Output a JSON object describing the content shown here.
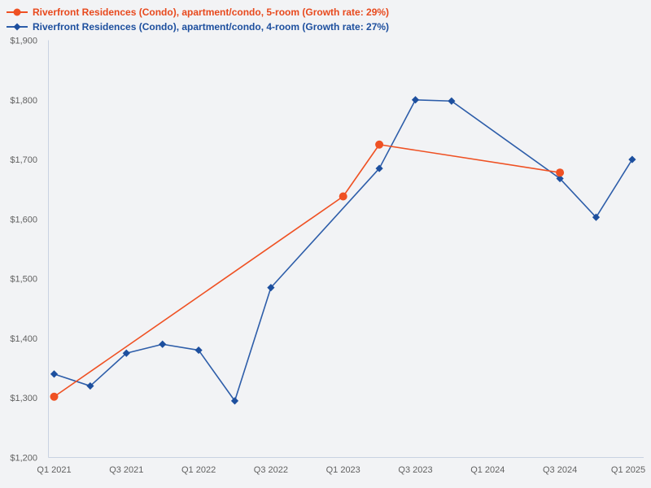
{
  "page": {
    "background_color": "#f2f3f5",
    "axis_color": "#c9d2e1",
    "tick_text_color": "#616161"
  },
  "legend": [
    {
      "label": "Riverfront Residences (Condo), apartment/condo, 5-room (Growth rate: 29%)",
      "marker": "circle",
      "line_color": "#ef5123",
      "marker_color": "#ef5123",
      "text_color": "#e8491d"
    },
    {
      "label": "Riverfront Residences (Condo), apartment/condo, 4-room (Growth rate: 27%)",
      "marker": "diamond",
      "line_color": "#2d5da9",
      "marker_color": "#1d4f9e",
      "text_color": "#1d4f9e"
    }
  ],
  "chart_data": {
    "type": "line",
    "title": "",
    "xlabel": "",
    "ylabel": "",
    "grid": false,
    "legend_position": "top-left",
    "ylim": [
      1200,
      1900
    ],
    "y_ticks": [
      {
        "value": 1900,
        "label": "$1,900"
      },
      {
        "value": 1800,
        "label": "$1,800"
      },
      {
        "value": 1700,
        "label": "$1,700"
      },
      {
        "value": 1600,
        "label": "$1,600"
      },
      {
        "value": 1500,
        "label": "$1,500"
      },
      {
        "value": 1400,
        "label": "$1,400"
      },
      {
        "value": 1300,
        "label": "$1,300"
      },
      {
        "value": 1200,
        "label": "$1,200"
      }
    ],
    "x_categories": [
      "Q1 2021",
      "Q2 2021",
      "Q3 2021",
      "Q4 2021",
      "Q1 2022",
      "Q2 2022",
      "Q3 2022",
      "Q4 2022",
      "Q1 2023",
      "Q2 2023",
      "Q3 2023",
      "Q4 2023",
      "Q1 2024",
      "Q2 2024",
      "Q3 2024",
      "Q4 2024",
      "Q1 2025"
    ],
    "x_tick_labels": [
      "Q1 2021",
      "Q3 2021",
      "Q1 2022",
      "Q3 2022",
      "Q1 2023",
      "Q3 2023",
      "Q1 2024",
      "Q3 2024",
      "Q1 2025"
    ],
    "series": [
      {
        "name": "Riverfront Residences (Condo), apartment/condo, 5-room (Growth rate: 29%)",
        "growth_rate": "29%",
        "marker": "circle",
        "line_color": "#ef5123",
        "marker_color": "#ef5123",
        "points": [
          {
            "x": "Q1 2021",
            "y": 1302
          },
          {
            "x": "Q1 2023",
            "y": 1638
          },
          {
            "x": "Q2 2023",
            "y": 1725
          },
          {
            "x": "Q3 2024",
            "y": 1678
          }
        ]
      },
      {
        "name": "Riverfront Residences (Condo), apartment/condo, 4-room (Growth rate: 27%)",
        "growth_rate": "27%",
        "marker": "diamond",
        "line_color": "#2d5da9",
        "marker_color": "#1d4f9e",
        "points": [
          {
            "x": "Q1 2021",
            "y": 1340
          },
          {
            "x": "Q2 2021",
            "y": 1320
          },
          {
            "x": "Q3 2021",
            "y": 1375
          },
          {
            "x": "Q4 2021",
            "y": 1390
          },
          {
            "x": "Q1 2022",
            "y": 1380
          },
          {
            "x": "Q2 2022",
            "y": 1295
          },
          {
            "x": "Q3 2022",
            "y": 1485
          },
          {
            "x": "Q2 2023",
            "y": 1685
          },
          {
            "x": "Q3 2023",
            "y": 1800
          },
          {
            "x": "Q4 2023",
            "y": 1798
          },
          {
            "x": "Q3 2024",
            "y": 1668
          },
          {
            "x": "Q4 2024",
            "y": 1603
          },
          {
            "x": "Q1 2025",
            "y": 1700
          }
        ]
      }
    ]
  }
}
